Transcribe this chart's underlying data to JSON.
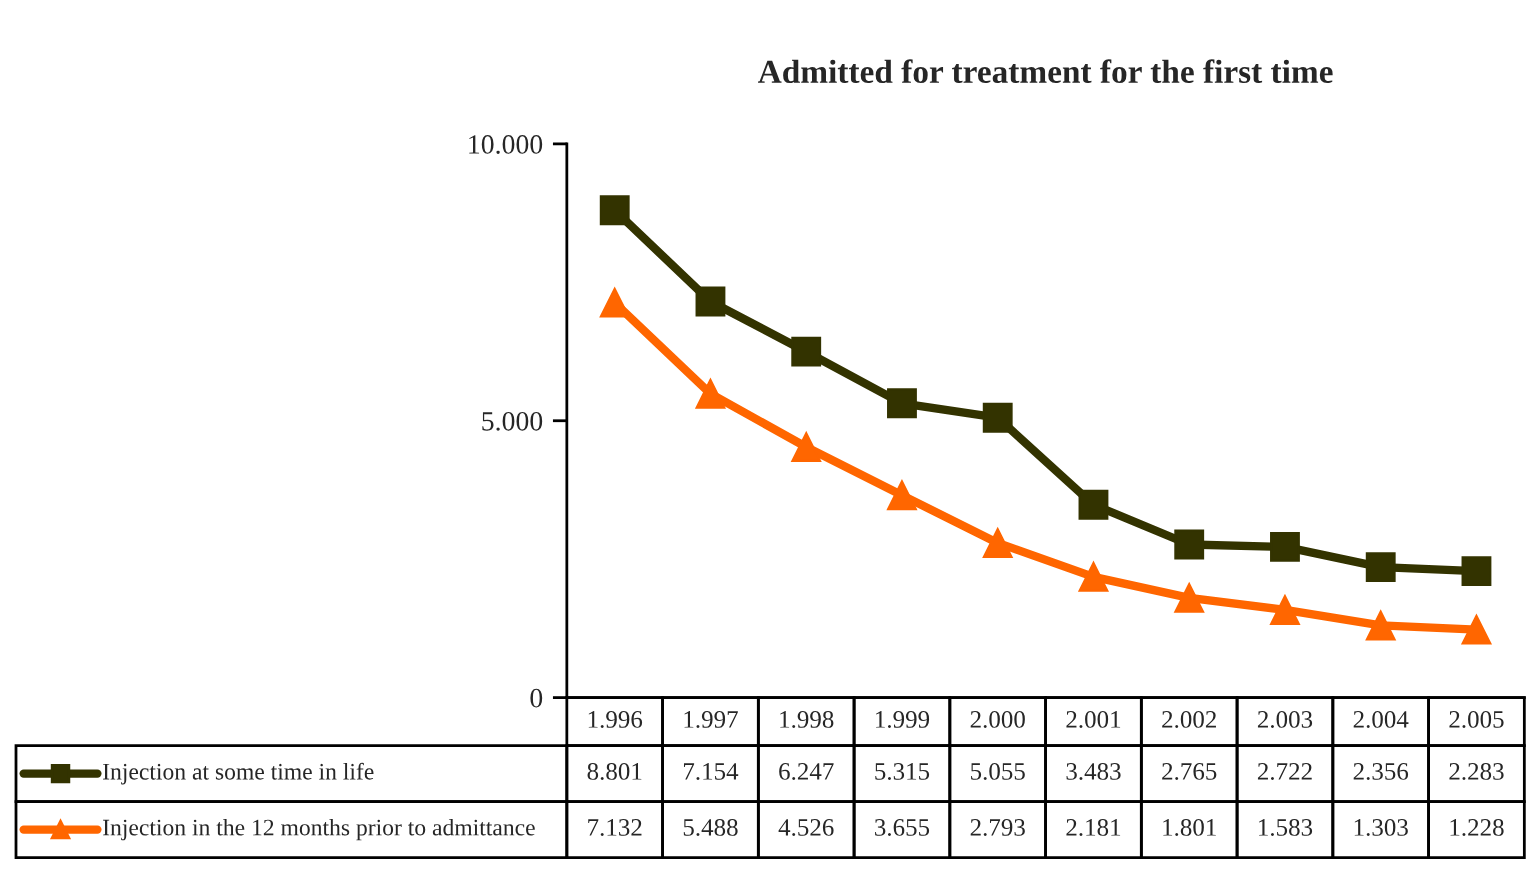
{
  "chart_data": {
    "type": "line",
    "title": "Admitted for treatment for the first time",
    "categories": [
      "1.996",
      "1.997",
      "1.998",
      "1.999",
      "2.000",
      "2.001",
      "2.002",
      "2.003",
      "2.004",
      "2.005"
    ],
    "series": [
      {
        "name": "Injection at some time in life",
        "color": "#333300",
        "marker": "square",
        "values": [
          8801,
          7154,
          6247,
          5315,
          5055,
          3483,
          2765,
          2722,
          2356,
          2283
        ],
        "value_labels": [
          "8.801",
          "7.154",
          "6.247",
          "5.315",
          "5.055",
          "3.483",
          "2.765",
          "2.722",
          "2.356",
          "2.283"
        ]
      },
      {
        "name": "Injection in the 12 months prior to admittance",
        "color": "#ff6600",
        "marker": "triangle",
        "values": [
          7132,
          5488,
          4526,
          3655,
          2793,
          2181,
          1801,
          1583,
          1303,
          1228
        ],
        "value_labels": [
          "7.132",
          "5.488",
          "4.526",
          "3.655",
          "2.793",
          "2.181",
          "1.801",
          "1.583",
          "1.303",
          "1.228"
        ]
      }
    ],
    "ylim": [
      0,
      10000
    ],
    "yticks": [
      0,
      {
        "value": 5000,
        "label": "5.000"
      },
      {
        "value": 10000,
        "label": "10.000"
      }
    ],
    "tick_labels": "y",
    "grid": false,
    "legend": "bottom",
    "line_style": "solid"
  }
}
